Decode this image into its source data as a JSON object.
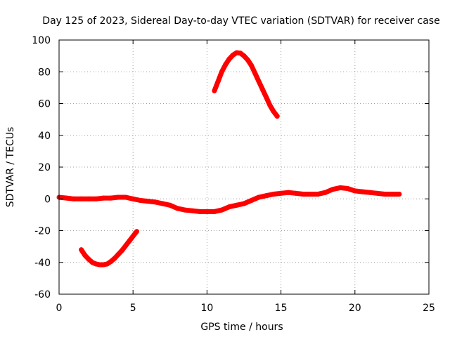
{
  "chart_data": {
    "type": "scatter",
    "title": "Day 125 of 2023, Sidereal Day-to-day VTEC variation (SDTVAR) for receiver case",
    "xlabel": "GPS time / hours",
    "ylabel": "SDTVAR / TECUs",
    "xlim": [
      0,
      25
    ],
    "ylim": [
      -60,
      100
    ],
    "x_ticks": [
      0,
      5,
      10,
      15,
      20,
      25
    ],
    "y_ticks": [
      -60,
      -40,
      -20,
      0,
      20,
      40,
      60,
      80,
      100
    ],
    "grid": true,
    "legend": "none",
    "series_color": "#ff0000",
    "series": [
      {
        "name": "main band",
        "x": [
          0.0,
          0.5,
          1.0,
          1.5,
          2.0,
          2.5,
          3.0,
          3.5,
          4.0,
          4.5,
          5.0,
          5.5,
          6.0,
          6.5,
          7.0,
          7.5,
          8.0,
          8.5,
          9.0,
          9.5,
          10.0,
          10.5,
          11.0,
          11.5,
          12.0,
          12.5,
          13.0,
          13.5,
          14.0,
          14.5,
          15.0,
          15.5,
          16.0,
          16.5,
          17.0,
          17.5,
          18.0,
          18.5,
          19.0,
          19.5,
          20.0,
          20.5,
          21.0,
          21.5,
          22.0,
          22.5,
          23.0
        ],
        "y": [
          1,
          0.5,
          0,
          0,
          0,
          0,
          0.5,
          0.5,
          1,
          1,
          0,
          -1,
          -1.5,
          -2,
          -3,
          -4,
          -6,
          -7,
          -7.5,
          -8,
          -8,
          -8,
          -7,
          -5,
          -4,
          -3,
          -1,
          1,
          2,
          3,
          3.5,
          4,
          3.5,
          3,
          3,
          3,
          4,
          6,
          7,
          6.5,
          5,
          4.5,
          4,
          3.5,
          3,
          3,
          3
        ]
      },
      {
        "name": "upper arc",
        "x": [
          10.5,
          10.75,
          11.0,
          11.25,
          11.5,
          11.75,
          12.0,
          12.25,
          12.5,
          12.75,
          13.0,
          13.25,
          13.5,
          13.75,
          14.0,
          14.25,
          14.5,
          14.75
        ],
        "y": [
          68,
          74,
          80,
          84.5,
          88,
          90.5,
          92,
          91.8,
          90,
          87.5,
          84,
          79,
          74,
          69,
          64,
          59,
          55,
          52
        ]
      },
      {
        "name": "lower arc",
        "x": [
          1.5,
          1.75,
          2.0,
          2.25,
          2.5,
          2.75,
          3.0,
          3.25,
          3.5,
          3.75,
          4.0,
          4.25,
          4.5,
          4.75,
          5.0,
          5.25
        ],
        "y": [
          -32,
          -35.5,
          -38,
          -40,
          -41,
          -41.5,
          -41.5,
          -41,
          -39.5,
          -37.5,
          -35,
          -32.5,
          -29.5,
          -26.5,
          -23.5,
          -20.5
        ]
      }
    ]
  }
}
